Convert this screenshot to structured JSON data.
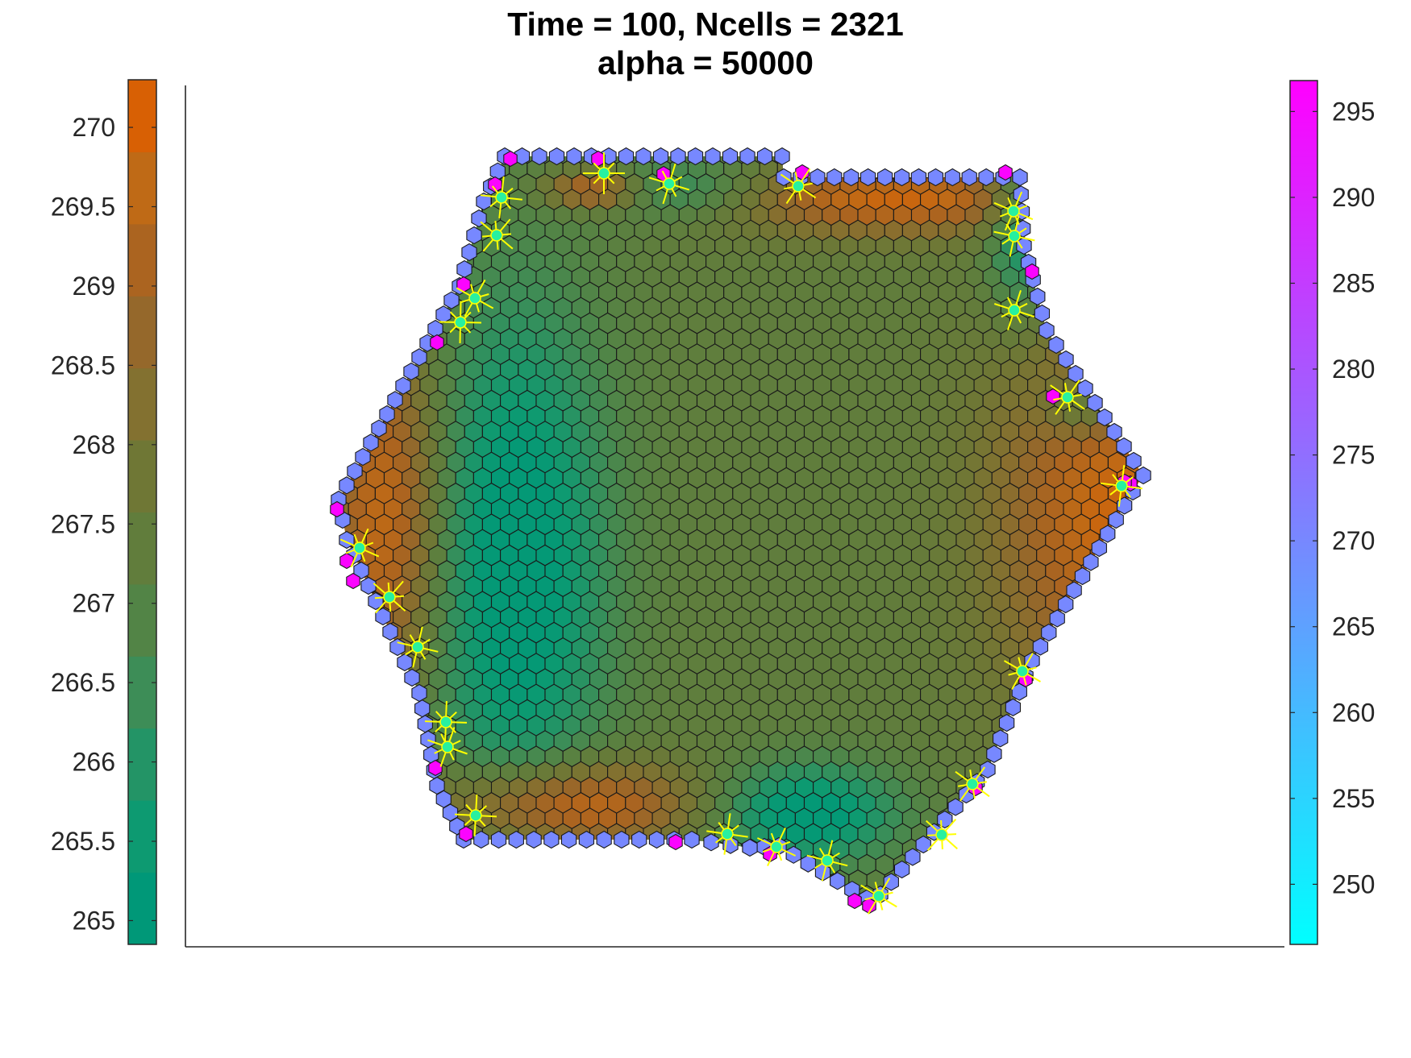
{
  "chart_data": {
    "type": "heatmap",
    "title_line1": "Time = 100, Ncells = 2321",
    "title_line2": "alpha = 50000",
    "xlabel": "",
    "ylabel": "",
    "axes": "bottom-left lines only, no ticks",
    "grid": false,
    "legend": "none",
    "left_colorbar": {
      "position": "left",
      "range": [
        264.85,
        270.3
      ],
      "ticks": [
        265,
        265.5,
        266,
        266.5,
        267,
        267.5,
        268,
        268.5,
        269,
        269.5,
        270
      ],
      "tick_labels": [
        "265",
        "265.5",
        "266",
        "266.5",
        "267",
        "267.5",
        "268",
        "268.5",
        "269",
        "269.5",
        "270"
      ],
      "colors": [
        "#009878",
        "#0d9a71",
        "#239466",
        "#3d8d57",
        "#528446",
        "#617d3c",
        "#6f7735",
        "#837130",
        "#95682b",
        "#ab6420",
        "#bf6a16",
        "#d86004"
      ]
    },
    "right_colorbar": {
      "position": "right",
      "range": [
        246.5,
        296.8
      ],
      "ticks": [
        250,
        255,
        260,
        265,
        270,
        275,
        280,
        285,
        290,
        295
      ],
      "tick_labels": [
        "250",
        "255",
        "260",
        "265",
        "270",
        "275",
        "280",
        "285",
        "290",
        "295"
      ],
      "color_low": "#00ffff",
      "color_high": "#ff00ff"
    },
    "tissue": {
      "cell_count": 2321,
      "interior_value_range": [
        265,
        270
      ],
      "boundary_value": 270,
      "corner_cell_value": 296,
      "marker_color": "#ffff00",
      "marker_center_color": "#28f0a0",
      "cell_edge_color": "#1a1a1a"
    }
  }
}
